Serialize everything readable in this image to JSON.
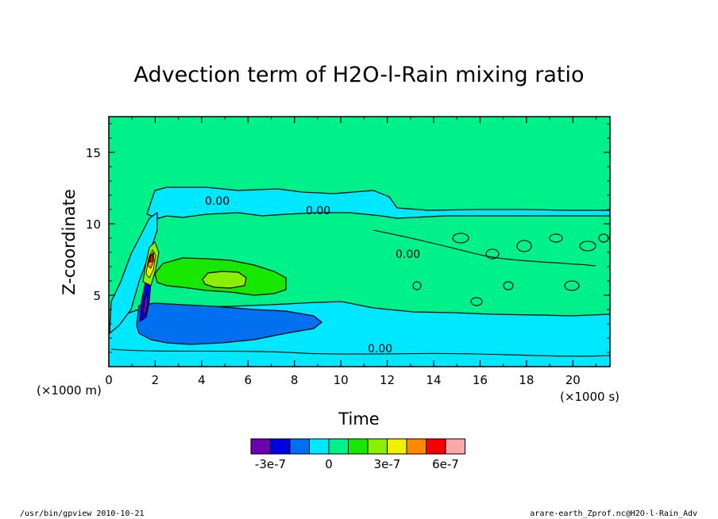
{
  "chart_data": {
    "type": "heatmap",
    "title": "Advection term of H2O-l-Rain mixing ratio",
    "xlabel": "Time",
    "ylabel": "Z-coordinate",
    "x_unit": "(×1000 s)",
    "y_unit": "(×1000 m)",
    "xlim": [
      0,
      21.6
    ],
    "ylim": [
      0,
      17.5
    ],
    "x_ticks": [
      "0",
      "2",
      "4",
      "6",
      "8",
      "10",
      "12",
      "14",
      "16",
      "18",
      "20"
    ],
    "y_ticks": [
      "5",
      "10",
      "15"
    ],
    "contour_labels": [
      "0.00",
      "0.00",
      "0.00",
      "0.00"
    ],
    "colorbar": {
      "colors": [
        "#6a00b0",
        "#0000e0",
        "#0070f0",
        "#00e8ff",
        "#00f08a",
        "#18e800",
        "#88f000",
        "#f0f000",
        "#ff8a00",
        "#f80000",
        "#f8a8a8"
      ],
      "tick_labels": [
        "-3e-7",
        "0",
        "3e-7",
        "6e-7"
      ]
    },
    "colors": {
      "background_field": "#00f08a",
      "negative_weak": "#00e8ff",
      "negative_mid": "#0070f0",
      "negative_strong": "#0000e0",
      "positive_weak": "#18e800",
      "positive_mid": "#88f000"
    }
  },
  "footer": {
    "left": "/usr/bin/gpview   2010-10-21",
    "right": "arare-earth_Zprof.nc@H2O-l-Rain_Adv"
  }
}
